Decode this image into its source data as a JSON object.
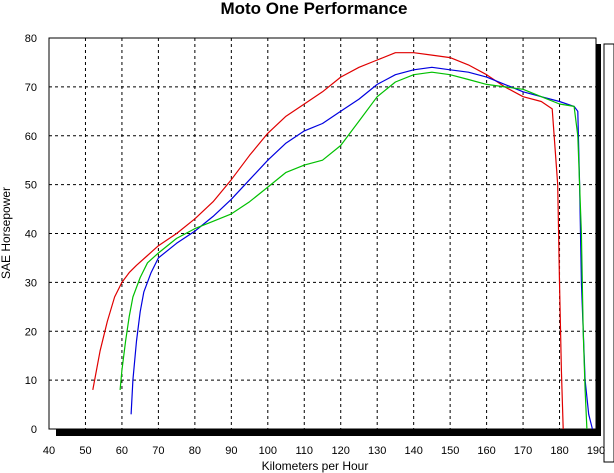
{
  "chart_data": {
    "type": "line",
    "title": "Moto One Performance",
    "xlabel": "Kilometers per Hour",
    "ylabel": "SAE Horsepower",
    "xlim": [
      40,
      190
    ],
    "ylim": [
      0,
      80
    ],
    "xticks": [
      40,
      50,
      60,
      70,
      80,
      90,
      100,
      110,
      120,
      130,
      140,
      150,
      160,
      170,
      180,
      190
    ],
    "yticks": [
      0,
      10,
      20,
      30,
      40,
      50,
      60,
      70,
      80
    ],
    "grid": true,
    "legend": "none",
    "series": [
      {
        "color": "#e00000",
        "x": [
          52,
          54,
          56,
          58,
          60,
          62,
          64,
          67,
          70,
          75,
          80,
          85,
          90,
          95,
          100,
          105,
          110,
          115,
          120,
          125,
          130,
          135,
          140,
          145,
          150,
          155,
          160,
          165,
          170,
          175,
          178,
          179.5,
          180,
          180.5,
          181
        ],
        "y": [
          8,
          16,
          22,
          27,
          30,
          32,
          33.5,
          35.5,
          37.5,
          40,
          43,
          46.5,
          51,
          56,
          60.5,
          64,
          66.5,
          69,
          72,
          74,
          75.5,
          77,
          77,
          76.5,
          76,
          74.5,
          72.5,
          70,
          68,
          67,
          65.5,
          50,
          30,
          12,
          0
        ]
      },
      {
        "color": "#0000e0",
        "x": [
          62.5,
          63,
          64,
          65,
          66,
          68,
          70,
          75,
          80,
          85,
          90,
          95,
          100,
          105,
          110,
          115,
          120,
          125,
          130,
          135,
          140,
          145,
          150,
          155,
          160,
          165,
          170,
          175,
          180,
          184,
          185,
          185.5,
          186,
          187,
          188,
          189
        ],
        "y": [
          3,
          10,
          18,
          24,
          28,
          32,
          35,
          38,
          40.5,
          43.5,
          47,
          51,
          55,
          58.5,
          61,
          62.5,
          65,
          67.5,
          70.5,
          72.5,
          73.5,
          74,
          73.5,
          73,
          72,
          70.5,
          69,
          68,
          67,
          66,
          65,
          50,
          30,
          10,
          3,
          0
        ]
      },
      {
        "color": "#00c000",
        "x": [
          59.5,
          60,
          61,
          62,
          63,
          65,
          67,
          70,
          75,
          80,
          85,
          90,
          95,
          100,
          105,
          110,
          115,
          120,
          125,
          130,
          135,
          140,
          145,
          150,
          155,
          160,
          165,
          170,
          175,
          180,
          184,
          185,
          186,
          186.5,
          187,
          187.5
        ],
        "y": [
          8,
          12,
          18,
          23,
          27,
          31,
          34,
          36,
          39,
          41,
          42.5,
          44,
          46.5,
          49.5,
          52.5,
          54,
          55,
          58,
          63,
          68,
          71,
          72.5,
          73,
          72.5,
          71.5,
          70.5,
          70,
          69.5,
          68,
          66.5,
          66,
          60,
          40,
          20,
          8,
          0
        ]
      }
    ]
  }
}
